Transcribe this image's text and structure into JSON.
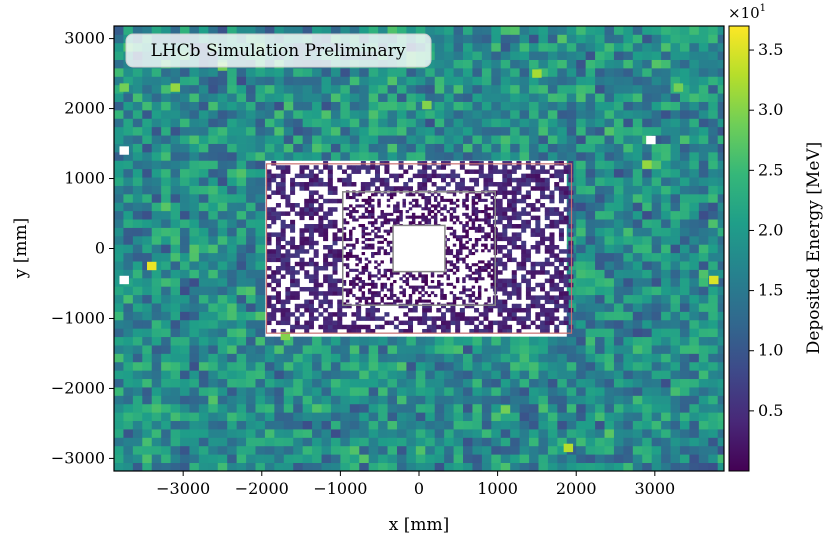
{
  "chart_data": {
    "type": "heatmap",
    "title": "",
    "annotation": "LHCb Simulation Preliminary",
    "xlabel": "x [mm]",
    "ylabel": "y [mm]",
    "xlim": [
      -3880,
      3880
    ],
    "ylim": [
      -3180,
      3180
    ],
    "x_ticks": [
      -3000,
      -2000,
      -1000,
      0,
      1000,
      2000,
      3000
    ],
    "x_tick_labels": [
      "−3000",
      "−2000",
      "−1000",
      "0",
      "1000",
      "2000",
      "3000"
    ],
    "y_ticks": [
      3000,
      2000,
      1000,
      0,
      -1000,
      -2000,
      -3000
    ],
    "y_tick_labels": [
      "3000",
      "2000",
      "1000",
      "0",
      "−1000",
      "−2000",
      "−3000"
    ],
    "colorbar": {
      "label": "Deposited Energy [MeV]",
      "multiplier": "×10",
      "multiplier_exponent": "1",
      "range": [
        0.0,
        3.7
      ],
      "ticks": [
        0.5,
        1.0,
        1.5,
        2.0,
        2.5,
        3.0,
        3.5
      ],
      "tick_labels": [
        "0.5",
        "1.0",
        "1.5",
        "2.0",
        "2.5",
        "3.0",
        "3.5"
      ],
      "colormap": "viridis",
      "colormap_stops": [
        "#440154",
        "#482878",
        "#3e4989",
        "#31688e",
        "#26828e",
        "#1f9e89",
        "#35b779",
        "#6ece58",
        "#b5de2b",
        "#fde725"
      ]
    },
    "cell_regions": [
      {
        "name": "outer",
        "x": [
          -3880,
          3880
        ],
        "y": [
          -3180,
          3180
        ],
        "cell_size": 120,
        "typical_value": 1.8
      },
      {
        "name": "middle",
        "x": [
          -1940,
          1940
        ],
        "y": [
          -1210,
          1210
        ],
        "cell_size": 60,
        "typical_value": 0.4
      },
      {
        "name": "inner",
        "x": [
          -970,
          970
        ],
        "y": [
          -810,
          810
        ],
        "cell_size": 40,
        "typical_value": 0.2
      },
      {
        "name": "beam-hole",
        "x": [
          -330,
          330
        ],
        "y": [
          -330,
          330
        ],
        "cell_size": 0,
        "typical_value": null
      }
    ],
    "hot_cells": [
      {
        "x": -3400,
        "y": -250,
        "value": 3.6
      },
      {
        "x": 3750,
        "y": -450,
        "value": 3.5
      },
      {
        "x": -3100,
        "y": 2300,
        "value": 3.1
      },
      {
        "x": 1500,
        "y": 2500,
        "value": 3.2
      },
      {
        "x": 2900,
        "y": 1200,
        "value": 3.1
      },
      {
        "x": 1900,
        "y": -2850,
        "value": 3.3
      },
      {
        "x": -1700,
        "y": -1250,
        "value": 3.0
      },
      {
        "x": 100,
        "y": 2050,
        "value": 3.0
      },
      {
        "x": -3750,
        "y": 2300,
        "value": 2.9
      },
      {
        "x": 3300,
        "y": 2300,
        "value": 2.9
      },
      {
        "x": -2500,
        "y": 2600,
        "value": 2.9
      },
      {
        "x": 1100,
        "y": -2300,
        "value": 2.9
      }
    ],
    "empty_cells": [
      {
        "x": -3750,
        "y": 1400
      },
      {
        "x": -3750,
        "y": -450
      },
      {
        "x": 2950,
        "y": 1550
      }
    ],
    "grid": false
  }
}
